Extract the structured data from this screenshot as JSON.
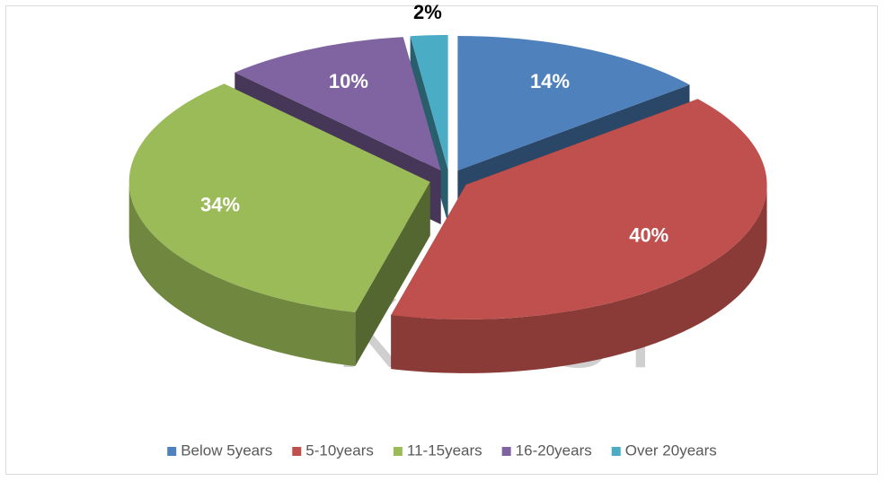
{
  "chart_data": {
    "type": "pie3d",
    "categories": [
      "Below 5years",
      "5-10years",
      "11-15years",
      "16-20years",
      "Over 20years"
    ],
    "values": [
      14,
      40,
      34,
      10,
      2
    ],
    "value_labels": [
      "14%",
      "40%",
      "34%",
      "10%",
      "2%"
    ],
    "colors": [
      "#4f81bd",
      "#c0504d",
      "#9bbb59",
      "#8064a2",
      "#4bacc6"
    ],
    "legend": "bottom",
    "watermark": "KNUST"
  }
}
